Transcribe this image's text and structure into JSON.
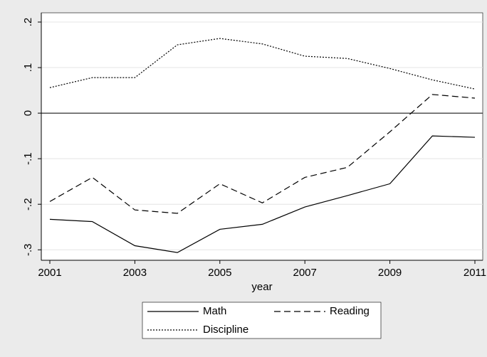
{
  "chart_data": {
    "type": "line",
    "x": [
      2001,
      2002,
      2003,
      2004,
      2005,
      2006,
      2007,
      2008,
      2009,
      2010,
      2011
    ],
    "series": [
      {
        "name": "Math",
        "color": "#000000",
        "line_style": "solid",
        "values": [
          -0.233,
          -0.238,
          -0.291,
          -0.306,
          -0.255,
          -0.244,
          -0.206,
          -0.181,
          -0.155,
          -0.05,
          -0.053
        ]
      },
      {
        "name": "Reading",
        "color": "#000000",
        "line_style": "dashed",
        "values": [
          -0.194,
          -0.141,
          -0.2125,
          -0.22,
          -0.155,
          -0.197,
          -0.141,
          -0.119,
          -0.041,
          0.041,
          0.033
        ]
      },
      {
        "name": "Discipline",
        "color": "#000000",
        "line_style": "dotted",
        "values": [
          0.056,
          0.078,
          0.078,
          0.15,
          0.164,
          0.152,
          0.125,
          0.12,
          0.098,
          0.073,
          0.053
        ]
      }
    ],
    "x_label": "year",
    "xlim": [
      2001,
      2011
    ],
    "xticks": [
      2001,
      2003,
      2005,
      2007,
      2009,
      2011
    ],
    "ylim": [
      -0.323,
      0.2203
    ],
    "yticks": [
      {
        "value": -0.3,
        "label": "-.3"
      },
      {
        "value": -0.2,
        "label": "-.2"
      },
      {
        "value": -0.1,
        "label": "-.1"
      },
      0,
      {
        "value": 0.1,
        "label": ".1"
      },
      {
        "value": 0.2,
        "label": ".2"
      }
    ],
    "reference_line": 0,
    "grid": true,
    "legend": "bottom"
  }
}
